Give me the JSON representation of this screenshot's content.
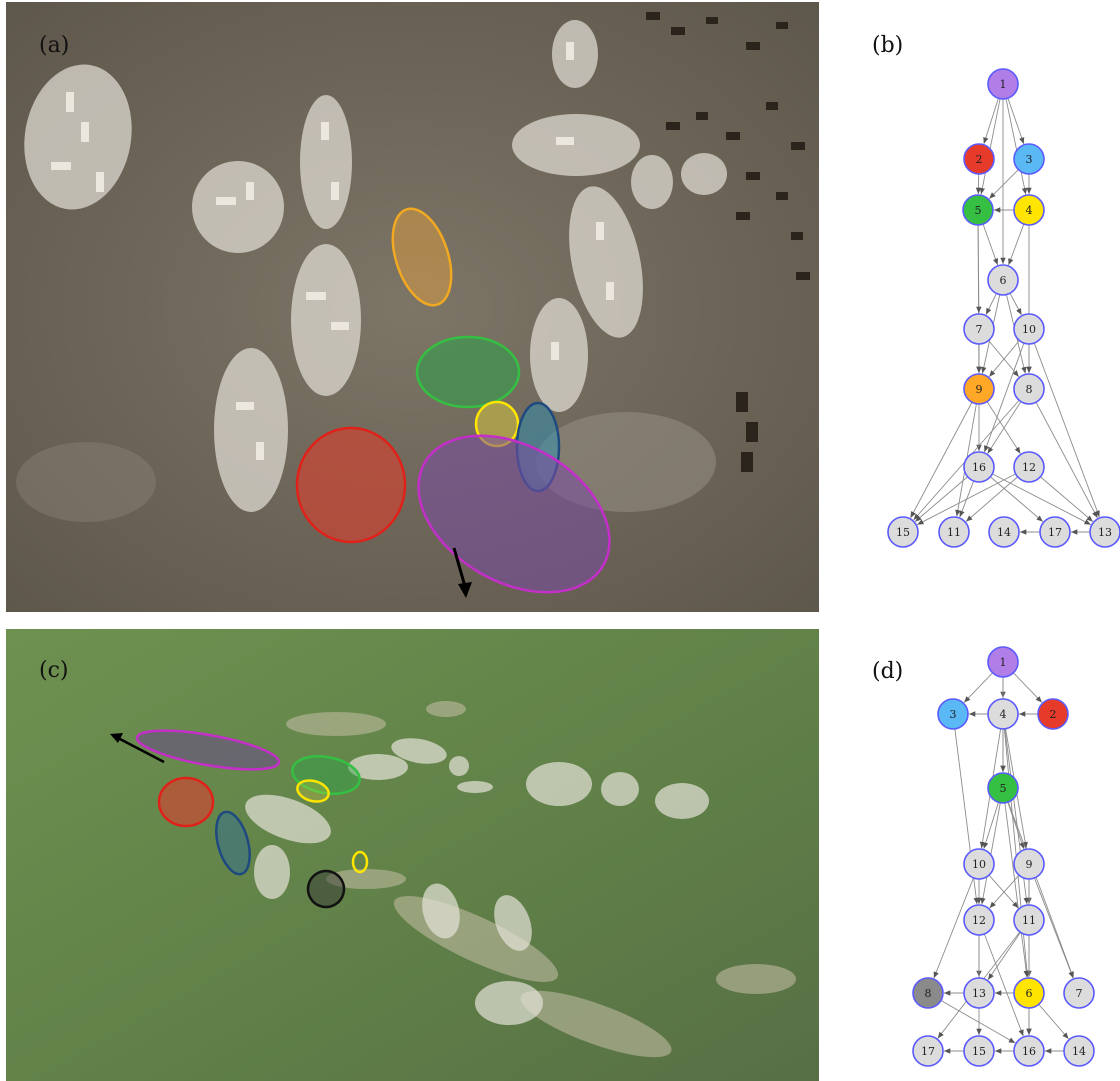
{
  "panels": {
    "a": {
      "label": "(a)"
    },
    "b": {
      "label": "(b)"
    },
    "c": {
      "label": "(c)"
    },
    "d": {
      "label": "(d)"
    }
  },
  "colors": {
    "purple": "#b07ee6",
    "red": "#e63a2a",
    "blue": "#5ab8f5",
    "green": "#35c044",
    "yellow": "#ffe500",
    "orange": "#ffa726",
    "dark": "#8a8a8a",
    "default": "#dcdcdc",
    "node_stroke": "#5a5aff"
  },
  "graph_b": {
    "nodes": [
      {
        "id": "1",
        "color": "purple"
      },
      {
        "id": "2",
        "color": "red"
      },
      {
        "id": "3",
        "color": "blue"
      },
      {
        "id": "5",
        "color": "green"
      },
      {
        "id": "4",
        "color": "yellow"
      },
      {
        "id": "6",
        "color": "default"
      },
      {
        "id": "7",
        "color": "default"
      },
      {
        "id": "10",
        "color": "default"
      },
      {
        "id": "9",
        "color": "orange"
      },
      {
        "id": "8",
        "color": "default"
      },
      {
        "id": "16",
        "color": "default"
      },
      {
        "id": "12",
        "color": "default"
      },
      {
        "id": "15",
        "color": "default"
      },
      {
        "id": "11",
        "color": "default"
      },
      {
        "id": "14",
        "color": "default"
      },
      {
        "id": "17",
        "color": "default"
      },
      {
        "id": "13",
        "color": "default"
      }
    ],
    "edges": [
      [
        "1",
        "2"
      ],
      [
        "1",
        "3"
      ],
      [
        "1",
        "5"
      ],
      [
        "1",
        "4"
      ],
      [
        "1",
        "6"
      ],
      [
        "2",
        "5"
      ],
      [
        "3",
        "5"
      ],
      [
        "3",
        "4"
      ],
      [
        "4",
        "5"
      ],
      [
        "5",
        "6"
      ],
      [
        "4",
        "6"
      ],
      [
        "5",
        "9"
      ],
      [
        "5",
        "7"
      ],
      [
        "4",
        "8"
      ],
      [
        "6",
        "7"
      ],
      [
        "6",
        "10"
      ],
      [
        "6",
        "9"
      ],
      [
        "6",
        "8"
      ],
      [
        "7",
        "9"
      ],
      [
        "7",
        "8"
      ],
      [
        "10",
        "9"
      ],
      [
        "10",
        "8"
      ],
      [
        "10",
        "16"
      ],
      [
        "10",
        "13"
      ],
      [
        "9",
        "16"
      ],
      [
        "9",
        "12"
      ],
      [
        "9",
        "15"
      ],
      [
        "9",
        "11"
      ],
      [
        "8",
        "16"
      ],
      [
        "8",
        "15"
      ],
      [
        "8",
        "13"
      ],
      [
        "16",
        "15"
      ],
      [
        "16",
        "11"
      ],
      [
        "16",
        "17"
      ],
      [
        "16",
        "13"
      ],
      [
        "12",
        "11"
      ],
      [
        "12",
        "13"
      ],
      [
        "12",
        "15"
      ],
      [
        "17",
        "14"
      ],
      [
        "13",
        "17"
      ]
    ]
  },
  "graph_d": {
    "nodes": [
      {
        "id": "1",
        "color": "purple"
      },
      {
        "id": "3",
        "color": "blue"
      },
      {
        "id": "4",
        "color": "default"
      },
      {
        "id": "2",
        "color": "red"
      },
      {
        "id": "5",
        "color": "green"
      },
      {
        "id": "10",
        "color": "default"
      },
      {
        "id": "9",
        "color": "default"
      },
      {
        "id": "12",
        "color": "default"
      },
      {
        "id": "11",
        "color": "default"
      },
      {
        "id": "8",
        "color": "dark"
      },
      {
        "id": "13",
        "color": "default"
      },
      {
        "id": "6",
        "color": "yellow"
      },
      {
        "id": "7",
        "color": "default"
      },
      {
        "id": "17",
        "color": "default"
      },
      {
        "id": "15",
        "color": "default"
      },
      {
        "id": "16",
        "color": "default"
      },
      {
        "id": "14",
        "color": "default"
      }
    ],
    "edges": [
      [
        "1",
        "3"
      ],
      [
        "1",
        "4"
      ],
      [
        "1",
        "2"
      ],
      [
        "1",
        "5"
      ],
      [
        "4",
        "3"
      ],
      [
        "2",
        "4"
      ],
      [
        "4",
        "5"
      ],
      [
        "4",
        "10"
      ],
      [
        "4",
        "9"
      ],
      [
        "4",
        "6"
      ],
      [
        "4",
        "11"
      ],
      [
        "3",
        "12"
      ],
      [
        "5",
        "10"
      ],
      [
        "5",
        "9"
      ],
      [
        "5",
        "12"
      ],
      [
        "5",
        "6"
      ],
      [
        "5",
        "7"
      ],
      [
        "10",
        "12"
      ],
      [
        "10",
        "11"
      ],
      [
        "9",
        "12"
      ],
      [
        "9",
        "11"
      ],
      [
        "9",
        "6"
      ],
      [
        "9",
        "7"
      ],
      [
        "10",
        "8"
      ],
      [
        "12",
        "13"
      ],
      [
        "12",
        "16"
      ],
      [
        "11",
        "13"
      ],
      [
        "11",
        "16"
      ],
      [
        "11",
        "17"
      ],
      [
        "13",
        "8"
      ],
      [
        "6",
        "13"
      ],
      [
        "6",
        "16"
      ],
      [
        "6",
        "14"
      ],
      [
        "12",
        "15"
      ],
      [
        "15",
        "17"
      ],
      [
        "16",
        "15"
      ],
      [
        "14",
        "16"
      ],
      [
        "8",
        "16"
      ]
    ]
  }
}
